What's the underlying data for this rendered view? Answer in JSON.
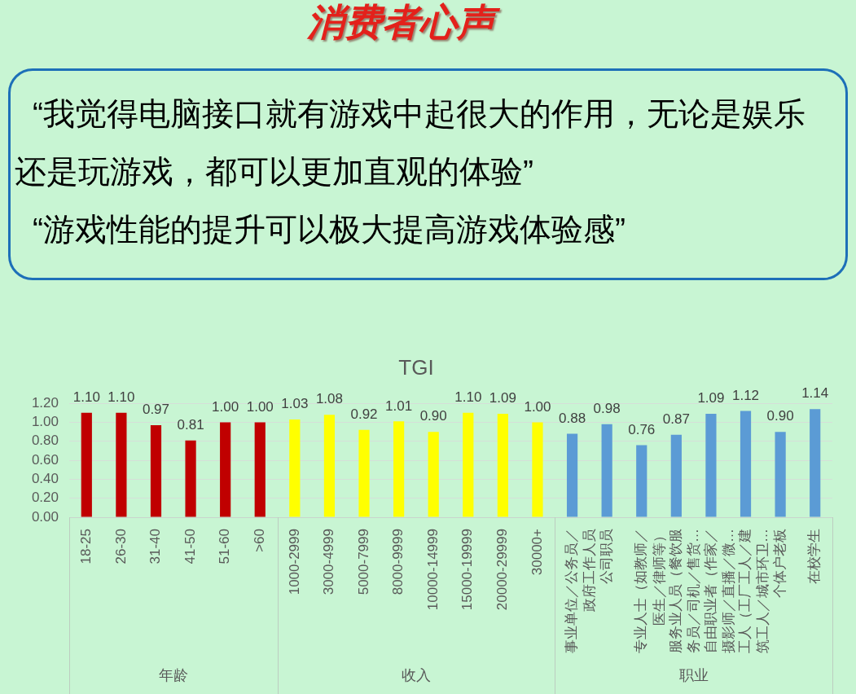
{
  "chart_data": {
    "type": "bar",
    "title": "消费者心声",
    "subtitle": "TGI",
    "annotations": [
      "“我觉得电脑接口就有游戏中起很大的作用，无论是娱乐还是玩游戏，都可以更加直观的体验”",
      "“游戏性能的提升可以极大提高游戏体验感”",
      "年龄",
      "收入",
      "职业"
    ],
    "categories": [
      "18-25",
      "26-30",
      "31-40",
      "41-50",
      "51-60",
      ">60",
      "1000-2999",
      "3000-4999",
      "5000-7999",
      "8000-9999",
      "10000-14999",
      "15000-19999",
      "20000-29999",
      "30000+",
      "事业单位／公务员／政府工作人员",
      "公司职员",
      "专业人士（如教师／医生／律师等）",
      "服务业人员（餐饮服务员／司机／售货…",
      "自由职业者（作家／摄影师／直播／微…",
      "工人（工厂工人／建筑工人／城市环卫…",
      "个体户老板",
      "在校学生"
    ],
    "values": [
      1.1,
      1.1,
      0.97,
      0.81,
      1.0,
      1.0,
      1.03,
      1.08,
      0.92,
      1.01,
      0.9,
      1.1,
      1.09,
      1.0,
      0.88,
      0.98,
      0.76,
      0.87,
      1.09,
      1.12,
      0.9,
      1.14
    ],
    "colors": [
      "#c00000",
      "#c00000",
      "#c00000",
      "#c00000",
      "#c00000",
      "#c00000",
      "#ffff00",
      "#ffff00",
      "#ffff00",
      "#ffff00",
      "#ffff00",
      "#ffff00",
      "#ffff00",
      "#ffff00",
      "#5b9bd5",
      "#5b9bd5",
      "#5b9bd5",
      "#5b9bd5",
      "#5b9bd5",
      "#5b9bd5",
      "#5b9bd5",
      "#5b9bd5"
    ],
    "value_labels": [
      "1.10",
      "1.10",
      "0.97",
      "0.81",
      "1.00",
      "1.00",
      "1.03",
      "1.08",
      "0.92",
      "1.01",
      "0.90",
      "1.10",
      "1.09",
      "1.00",
      "0.88",
      "0.98",
      "0.76",
      "0.87",
      "1.09",
      "1.12",
      "0.90",
      "1.14"
    ],
    "ylim": [
      0,
      1.2
    ],
    "yticks": [
      {
        "value": 0,
        "label": "0.00"
      },
      {
        "value": 0.2,
        "label": "0.20"
      },
      {
        "value": 0.4,
        "label": "0.40"
      },
      {
        "value": 0.6,
        "label": "0.60"
      },
      {
        "value": 0.8,
        "label": "0.80"
      },
      {
        "value": 1.0,
        "label": "1.00"
      },
      {
        "value": 1.2,
        "label": "1.20"
      }
    ],
    "grid": "y"
  }
}
